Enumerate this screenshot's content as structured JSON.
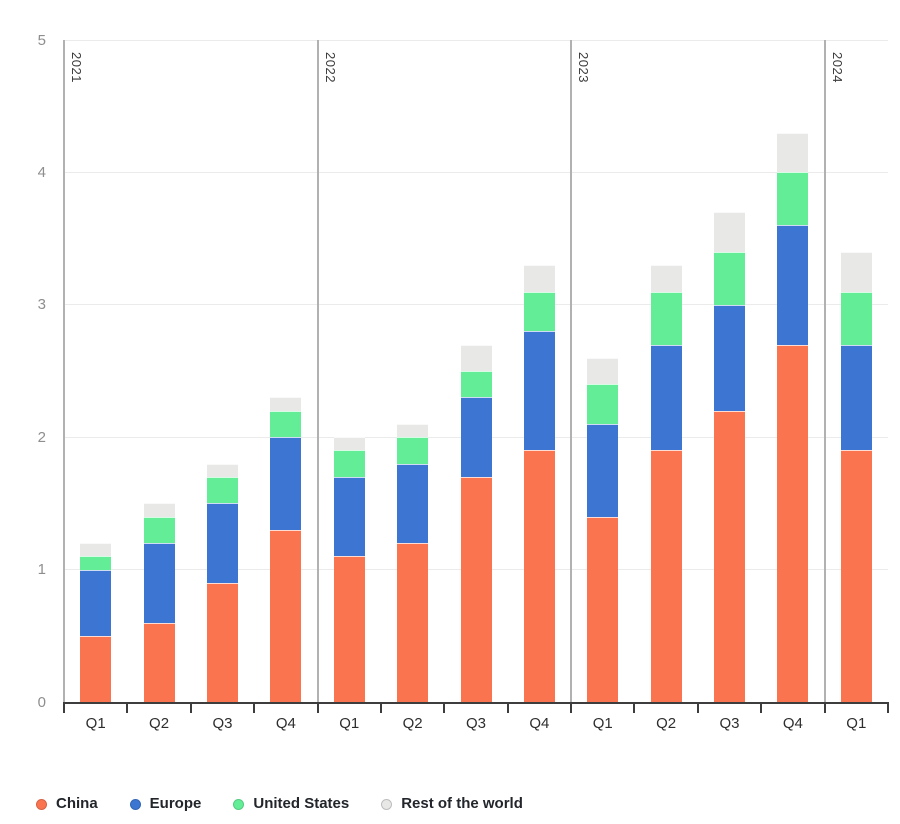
{
  "chart_data": {
    "type": "bar",
    "stacked": true,
    "title": "",
    "xlabel": "",
    "ylabel": "",
    "categories": [
      "Q1",
      "Q2",
      "Q3",
      "Q4",
      "Q1",
      "Q2",
      "Q3",
      "Q4",
      "Q1",
      "Q2",
      "Q3",
      "Q4",
      "Q1"
    ],
    "year_groups": [
      {
        "label": "2021",
        "span": 4
      },
      {
        "label": "2022",
        "span": 4
      },
      {
        "label": "2023",
        "span": 4
      },
      {
        "label": "2024",
        "span": 1
      }
    ],
    "series": [
      {
        "name": "China",
        "color": "#FA7450",
        "dot_border": "rgba(0,0,0,0.14)",
        "values": [
          0.5,
          0.6,
          0.9,
          1.3,
          1.1,
          1.2,
          1.7,
          1.9,
          1.4,
          1.9,
          2.2,
          2.7,
          1.9
        ]
      },
      {
        "name": "Europe",
        "color": "#3C76D2",
        "dot_border": "rgba(0,0,0,0.14)",
        "values": [
          0.5,
          0.6,
          0.6,
          0.7,
          0.6,
          0.6,
          0.6,
          0.9,
          0.7,
          0.8,
          0.8,
          0.9,
          0.8
        ]
      },
      {
        "name": "United States",
        "color": "#62ED96",
        "dot_border": "rgba(0,0,0,0.14)",
        "values": [
          0.1,
          0.2,
          0.2,
          0.2,
          0.2,
          0.2,
          0.2,
          0.3,
          0.3,
          0.4,
          0.4,
          0.4,
          0.4
        ]
      },
      {
        "name": "Rest of the world",
        "color": "#E8E8E6",
        "dot_border": "#BDBDBD",
        "values": [
          0.1,
          0.1,
          0.1,
          0.1,
          0.1,
          0.1,
          0.2,
          0.2,
          0.2,
          0.2,
          0.3,
          0.3,
          0.3
        ]
      }
    ],
    "stack_totals": [
      1.2,
      1.5,
      1.8,
      2.3,
      2.0,
      2.1,
      2.7,
      3.3,
      2.6,
      3.3,
      3.7,
      4.3,
      3.4
    ],
    "y_ticks": [
      0,
      1,
      2,
      3,
      4,
      5
    ],
    "ylim": [
      0,
      5
    ],
    "grid": true,
    "legend_position": "bottom"
  },
  "colors": {
    "grid": "#EBEBEB",
    "axis": "#3D3D3D",
    "separator": "#B1B1B1",
    "y_label": "#8E8E8E",
    "x_label": "#2E2E2E",
    "background": "#FFFFFF"
  }
}
